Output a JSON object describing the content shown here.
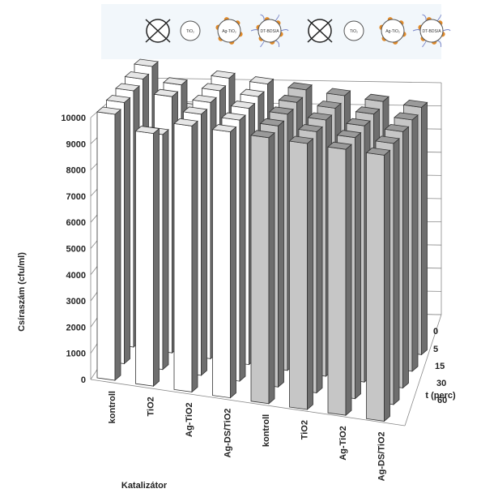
{
  "chart_data": {
    "type": "bar",
    "ylabel": "Csíraszám (cfu/ml)",
    "xlabel": "Katalizátor",
    "zlabel": "t (perc)",
    "ylim": [
      0,
      10000
    ],
    "yticks": [
      "0",
      "1000",
      "2000",
      "3000",
      "4000",
      "5000",
      "6000",
      "7000",
      "8000",
      "9000",
      "10000"
    ],
    "categories": [
      "kontroll",
      "TiO2",
      "Ag-TiO2",
      "Ag-DS/TiO2",
      "kontroll",
      "TiO2",
      "Ag-TiO2",
      "Ag-DS/TiO2"
    ],
    "times": [
      "0",
      "5",
      "15",
      "30",
      "60"
    ],
    "series_colors": [
      "#ffffff",
      "#c6c6c6"
    ],
    "values": [
      [
        10000,
        10000,
        10000,
        10000,
        10000
      ],
      [
        9500,
        9000,
        10000,
        10000,
        8500
      ],
      [
        10000,
        10000,
        10000,
        10000,
        10000
      ],
      [
        10000,
        10000,
        10000,
        10000,
        10000
      ],
      [
        10000,
        10000,
        10000,
        10000,
        10000
      ],
      [
        10000,
        10000,
        10000,
        10000,
        10000
      ],
      [
        10000,
        10000,
        10000,
        10000,
        10000
      ],
      [
        10000,
        10000,
        10000,
        10000,
        10000
      ]
    ]
  },
  "legend_icons": [
    {
      "name": "crossed-circle-icon",
      "label": ""
    },
    {
      "name": "tio2-particle-icon",
      "label": "TiO₂"
    },
    {
      "name": "ag-tio2-particle-icon",
      "label": "Ag-TiO₂"
    },
    {
      "name": "ag-ds-tio2-particle-icon",
      "label": "DT-BDS/A"
    },
    {
      "name": "crossed-circle-icon",
      "label": ""
    },
    {
      "name": "tio2-particle-icon",
      "label": "TiO₂"
    },
    {
      "name": "ag-tio2-particle-icon",
      "label": "Ag-TiO₂"
    },
    {
      "name": "ag-ds-tio2-particle-icon",
      "label": "DT-BDS/A"
    }
  ]
}
